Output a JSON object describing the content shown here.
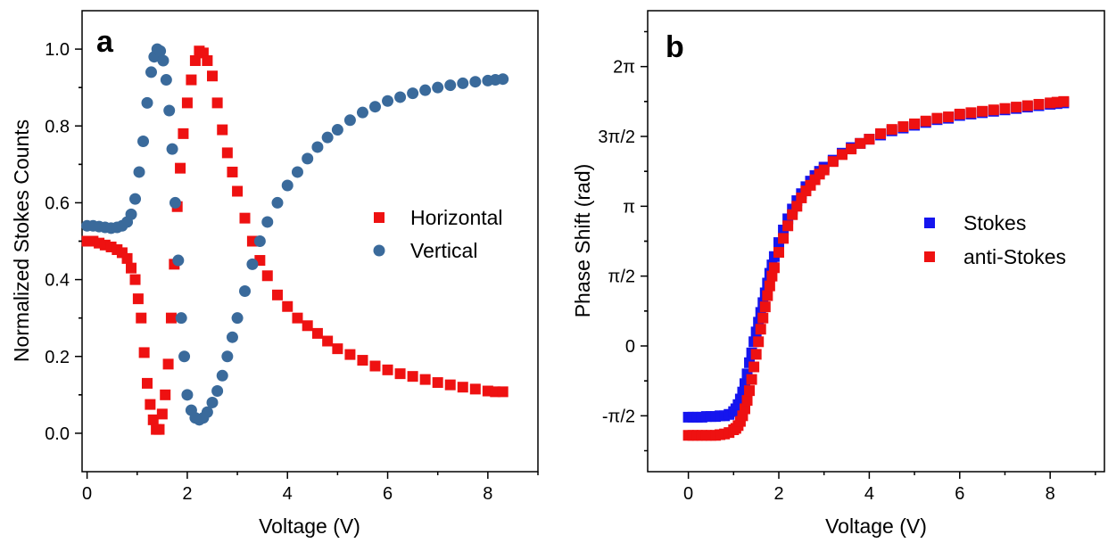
{
  "colors": {
    "horizontal": "#ee1111",
    "vertical": "#3a6a9b",
    "stokes": "#1515ee",
    "anti_stokes": "#ee1111"
  },
  "chart_data": [
    {
      "panel": "a",
      "type": "scatter",
      "xlabel": "Voltage (V)",
      "ylabel": "Normalized Stokes Counts",
      "xlim": [
        -0.1,
        9.0
      ],
      "ylim": [
        -0.1,
        1.1
      ],
      "xticks": [
        {
          "v": 0,
          "label": "0"
        },
        {
          "v": 2,
          "label": "2"
        },
        {
          "v": 4,
          "label": "4"
        },
        {
          "v": 6,
          "label": "6"
        },
        {
          "v": 8,
          "label": "8"
        }
      ],
      "yticks": [
        {
          "v": 0.0,
          "label": "0.0"
        },
        {
          "v": 0.2,
          "label": "0.2"
        },
        {
          "v": 0.4,
          "label": "0.4"
        },
        {
          "v": 0.6,
          "label": "0.6"
        },
        {
          "v": 0.8,
          "label": "0.8"
        },
        {
          "v": 1.0,
          "label": "1.0"
        }
      ],
      "legend": "center-right",
      "grid": false,
      "series": [
        {
          "name": "Horizontal",
          "marker": "square",
          "color": "#ee1111",
          "x": [
            0.0,
            0.12,
            0.24,
            0.36,
            0.48,
            0.6,
            0.7,
            0.8,
            0.88,
            0.96,
            1.02,
            1.08,
            1.14,
            1.2,
            1.26,
            1.32,
            1.38,
            1.44,
            1.5,
            1.56,
            1.62,
            1.68,
            1.74,
            1.8,
            1.86,
            1.92,
            2.0,
            2.08,
            2.16,
            2.24,
            2.32,
            2.4,
            2.5,
            2.6,
            2.7,
            2.8,
            2.9,
            3.0,
            3.15,
            3.3,
            3.45,
            3.6,
            3.8,
            4.0,
            4.2,
            4.4,
            4.6,
            4.8,
            5.0,
            5.25,
            5.5,
            5.75,
            6.0,
            6.25,
            6.5,
            6.75,
            7.0,
            7.25,
            7.5,
            7.75,
            8.0,
            8.15,
            8.3
          ],
          "y": [
            0.5,
            0.5,
            0.495,
            0.49,
            0.485,
            0.478,
            0.47,
            0.455,
            0.43,
            0.4,
            0.35,
            0.3,
            0.21,
            0.13,
            0.075,
            0.035,
            0.01,
            0.01,
            0.05,
            0.1,
            0.18,
            0.3,
            0.44,
            0.59,
            0.69,
            0.78,
            0.86,
            0.92,
            0.97,
            0.995,
            0.99,
            0.97,
            0.93,
            0.86,
            0.79,
            0.73,
            0.68,
            0.63,
            0.56,
            0.5,
            0.45,
            0.41,
            0.36,
            0.33,
            0.3,
            0.28,
            0.26,
            0.24,
            0.22,
            0.205,
            0.19,
            0.175,
            0.165,
            0.155,
            0.148,
            0.14,
            0.132,
            0.126,
            0.12,
            0.115,
            0.11,
            0.108,
            0.108
          ]
        },
        {
          "name": "Vertical",
          "marker": "circle",
          "color": "#3a6a9b",
          "x": [
            0.0,
            0.12,
            0.24,
            0.36,
            0.48,
            0.6,
            0.7,
            0.8,
            0.88,
            0.96,
            1.04,
            1.12,
            1.2,
            1.28,
            1.34,
            1.4,
            1.46,
            1.52,
            1.58,
            1.64,
            1.7,
            1.76,
            1.82,
            1.88,
            1.94,
            2.0,
            2.08,
            2.16,
            2.24,
            2.32,
            2.4,
            2.5,
            2.6,
            2.7,
            2.8,
            2.9,
            3.0,
            3.15,
            3.3,
            3.45,
            3.6,
            3.8,
            4.0,
            4.2,
            4.4,
            4.6,
            4.8,
            5.0,
            5.25,
            5.5,
            5.75,
            6.0,
            6.25,
            6.5,
            6.75,
            7.0,
            7.25,
            7.5,
            7.75,
            8.0,
            8.15,
            8.3
          ],
          "y": [
            0.54,
            0.54,
            0.538,
            0.536,
            0.534,
            0.536,
            0.54,
            0.55,
            0.57,
            0.61,
            0.68,
            0.76,
            0.86,
            0.94,
            0.98,
            1.0,
            0.995,
            0.97,
            0.92,
            0.84,
            0.74,
            0.6,
            0.45,
            0.3,
            0.2,
            0.1,
            0.06,
            0.04,
            0.035,
            0.04,
            0.055,
            0.08,
            0.11,
            0.15,
            0.2,
            0.25,
            0.3,
            0.37,
            0.44,
            0.5,
            0.55,
            0.6,
            0.645,
            0.68,
            0.715,
            0.745,
            0.77,
            0.79,
            0.815,
            0.835,
            0.85,
            0.865,
            0.875,
            0.885,
            0.893,
            0.9,
            0.906,
            0.911,
            0.915,
            0.918,
            0.92,
            0.922
          ]
        }
      ]
    },
    {
      "panel": "b",
      "type": "scatter",
      "xlabel": "Voltage (V)",
      "ylabel": "Phase Shift (rad)",
      "xlim": [
        -0.9,
        9.2
      ],
      "ylim_rad_over_pi": [
        -0.9,
        2.4
      ],
      "xticks": [
        {
          "v": 0,
          "label": "0"
        },
        {
          "v": 2,
          "label": "2"
        },
        {
          "v": 4,
          "label": "4"
        },
        {
          "v": 6,
          "label": "6"
        },
        {
          "v": 8,
          "label": "8"
        }
      ],
      "yticks": [
        {
          "v": -0.5,
          "label": "-π/2"
        },
        {
          "v": 0,
          "label": "0"
        },
        {
          "v": 0.5,
          "label": "π/2"
        },
        {
          "v": 1.0,
          "label": "π"
        },
        {
          "v": 1.5,
          "label": "3π/2"
        },
        {
          "v": 2.0,
          "label": "2π"
        }
      ],
      "y_units": "multiples of π rad",
      "legend": "center-right",
      "grid": false,
      "series": [
        {
          "name": "Stokes",
          "marker": "square",
          "color": "#1515ee",
          "x": [
            0.0,
            0.1,
            0.2,
            0.3,
            0.4,
            0.5,
            0.6,
            0.7,
            0.8,
            0.9,
            1.0,
            1.05,
            1.1,
            1.15,
            1.2,
            1.25,
            1.3,
            1.35,
            1.4,
            1.45,
            1.5,
            1.55,
            1.6,
            1.65,
            1.7,
            1.75,
            1.8,
            1.85,
            1.9,
            2.0,
            2.1,
            2.2,
            2.3,
            2.4,
            2.5,
            2.6,
            2.7,
            2.8,
            2.9,
            3.0,
            3.2,
            3.4,
            3.6,
            3.8,
            4.0,
            4.25,
            4.5,
            4.75,
            5.0,
            5.25,
            5.5,
            5.75,
            6.0,
            6.25,
            6.5,
            6.75,
            7.0,
            7.25,
            7.5,
            7.75,
            8.0,
            8.15,
            8.3
          ],
          "y": [
            -0.51,
            -0.51,
            -0.51,
            -0.51,
            -0.505,
            -0.505,
            -0.505,
            -0.5,
            -0.5,
            -0.49,
            -0.47,
            -0.45,
            -0.42,
            -0.38,
            -0.33,
            -0.27,
            -0.2,
            -0.12,
            -0.05,
            0.03,
            0.1,
            0.17,
            0.24,
            0.31,
            0.38,
            0.45,
            0.52,
            0.58,
            0.64,
            0.74,
            0.83,
            0.91,
            0.98,
            1.04,
            1.09,
            1.14,
            1.18,
            1.22,
            1.25,
            1.28,
            1.33,
            1.38,
            1.42,
            1.45,
            1.48,
            1.51,
            1.54,
            1.56,
            1.58,
            1.6,
            1.62,
            1.63,
            1.65,
            1.66,
            1.67,
            1.68,
            1.69,
            1.7,
            1.71,
            1.72,
            1.73,
            1.735,
            1.74
          ]
        },
        {
          "name": "anti-Stokes",
          "marker": "square",
          "color": "#ee1111",
          "x": [
            0.0,
            0.1,
            0.2,
            0.3,
            0.4,
            0.5,
            0.6,
            0.7,
            0.8,
            0.9,
            1.0,
            1.05,
            1.1,
            1.15,
            1.2,
            1.25,
            1.3,
            1.35,
            1.4,
            1.45,
            1.5,
            1.55,
            1.6,
            1.65,
            1.7,
            1.75,
            1.8,
            1.85,
            1.9,
            2.0,
            2.1,
            2.2,
            2.3,
            2.4,
            2.5,
            2.6,
            2.7,
            2.8,
            2.9,
            3.0,
            3.2,
            3.4,
            3.6,
            3.8,
            4.0,
            4.25,
            4.5,
            4.75,
            5.0,
            5.25,
            5.5,
            5.75,
            6.0,
            6.25,
            6.5,
            6.75,
            7.0,
            7.25,
            7.5,
            7.75,
            8.0,
            8.15,
            8.3
          ],
          "y": [
            -0.64,
            -0.64,
            -0.64,
            -0.64,
            -0.64,
            -0.64,
            -0.64,
            -0.635,
            -0.63,
            -0.62,
            -0.6,
            -0.59,
            -0.57,
            -0.54,
            -0.5,
            -0.45,
            -0.39,
            -0.32,
            -0.24,
            -0.15,
            -0.06,
            0.03,
            0.12,
            0.2,
            0.28,
            0.36,
            0.43,
            0.5,
            0.56,
            0.67,
            0.77,
            0.86,
            0.94,
            1.0,
            1.06,
            1.11,
            1.15,
            1.19,
            1.23,
            1.26,
            1.32,
            1.37,
            1.41,
            1.45,
            1.48,
            1.52,
            1.55,
            1.57,
            1.59,
            1.61,
            1.63,
            1.64,
            1.66,
            1.67,
            1.68,
            1.69,
            1.7,
            1.71,
            1.72,
            1.73,
            1.74,
            1.745,
            1.75
          ]
        }
      ]
    }
  ]
}
